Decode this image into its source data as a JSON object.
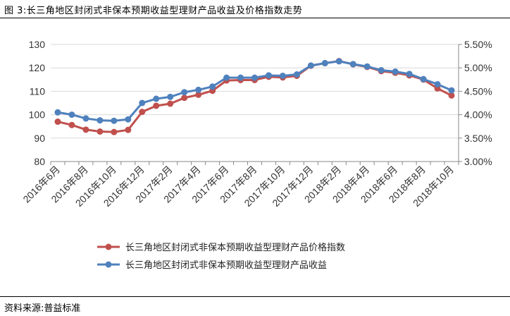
{
  "header": {
    "title": "图 3:长三角地区封闭式非保本预期收益型理财产品收益及价格指数走势"
  },
  "footer": {
    "source": "资料来源:普益标准"
  },
  "chart_data": {
    "type": "line",
    "x": [
      "2016年6月",
      "2016年7月",
      "2016年8月",
      "2016年9月",
      "2016年10月",
      "2016年11月",
      "2016年12月",
      "2017年1月",
      "2017年2月",
      "2017年3月",
      "2017年4月",
      "2017年5月",
      "2017年6月",
      "2017年7月",
      "2017年8月",
      "2017年9月",
      "2017年10月",
      "2017年11月",
      "2017年12月",
      "2018年1月",
      "2018年2月",
      "2018年3月",
      "2018年4月",
      "2018年5月",
      "2018年6月",
      "2018年7月",
      "2018年8月",
      "2018年9月",
      "2018年10月"
    ],
    "xtick_labels": [
      "2016年6月",
      "2016年8月",
      "2016年10月",
      "2016年12月",
      "2017年2月",
      "2017年4月",
      "2017年6月",
      "2017年8月",
      "2017年10月",
      "2017年12月",
      "2018年2月",
      "2018年4月",
      "2018年6月",
      "2018年8月",
      "2018年10月"
    ],
    "y_left": {
      "ylim": [
        80,
        130
      ],
      "ticks": [
        "80",
        "90",
        "100",
        "110",
        "120",
        "130"
      ]
    },
    "y_right": {
      "ylim": [
        3.0,
        5.5
      ],
      "ticks": [
        "3.00%",
        "3.50%",
        "4.00%",
        "4.50%",
        "5.00%",
        "5.50%"
      ]
    },
    "grid": "horizontal",
    "legend_position": "bottom",
    "series": [
      {
        "name": "长三角地区封闭式非保本预期收益型理财产品价格指数",
        "axis": "left",
        "color": "#C0504D",
        "values": [
          97.0,
          95.6,
          93.6,
          92.8,
          92.6,
          93.5,
          101.2,
          103.8,
          104.7,
          107.2,
          108.5,
          110.2,
          114.6,
          114.8,
          114.8,
          116.2,
          115.9,
          116.6,
          120.9,
          122.0,
          122.9,
          121.5,
          120.4,
          118.6,
          117.9,
          116.8,
          115.0,
          111.2,
          108.2
        ]
      },
      {
        "name": "长三角地区封闭式非保本预期收益型理财产品收益",
        "axis": "right",
        "color": "#4F81BD",
        "values": [
          4.05,
          4.0,
          3.92,
          3.88,
          3.87,
          3.9,
          4.25,
          4.34,
          4.38,
          4.48,
          4.53,
          4.6,
          4.79,
          4.79,
          4.79,
          4.84,
          4.83,
          4.86,
          5.05,
          5.1,
          5.14,
          5.08,
          5.03,
          4.95,
          4.92,
          4.87,
          4.76,
          4.65,
          4.52
        ]
      }
    ]
  }
}
